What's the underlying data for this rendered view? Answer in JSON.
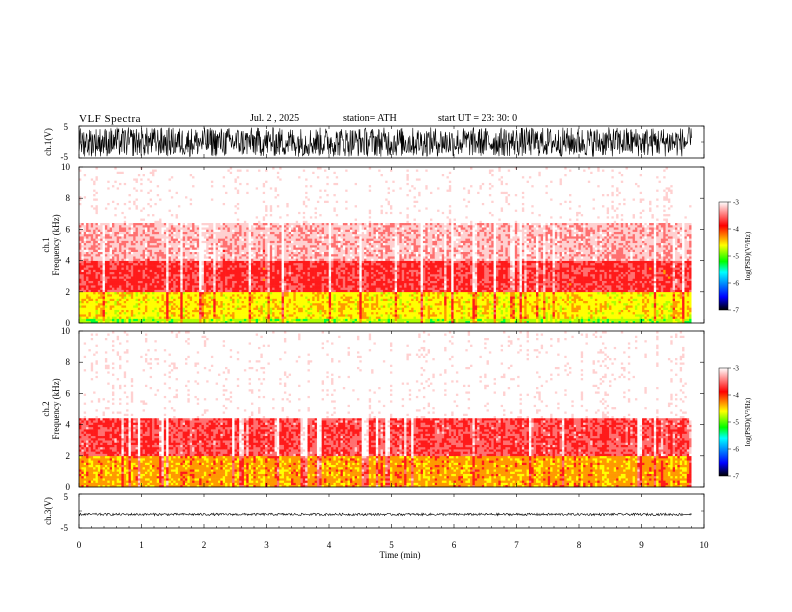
{
  "header": {
    "title": "VLF  Spectra",
    "date": "Jul.  2  , 2025",
    "station": "station= ATH",
    "start": "start  UT  =    23: 30: 0"
  },
  "chart_data": [
    {
      "type": "line",
      "panel": "ch1-waveform",
      "ylabel": "ch.1(V)",
      "ylim": [
        -5,
        5
      ],
      "yticks": [
        "5",
        "-5"
      ],
      "description_of_signal": "dense noise spanning roughly -4.5 to 4.5 V"
    },
    {
      "type": "heatmap",
      "panel": "ch1-spectrogram",
      "ylabel_lines": [
        "ch.1",
        "Frequency  (kHz)"
      ],
      "ylim": [
        0,
        10
      ],
      "yticks": [
        "0",
        "2",
        "4",
        "6",
        "8",
        "10"
      ],
      "x_range_min": [
        0,
        9.8
      ],
      "colorbar": {
        "label": "log(PSD)(V²/Hz)",
        "range": [
          -7,
          -3
        ],
        "ticks": [
          "-3",
          "-4",
          "-5",
          "-6",
          "-7"
        ],
        "colors": [
          "#000000",
          "#0000ff",
          "#00ffff",
          "#00ff00",
          "#ffff00",
          "#ff0000",
          "#ffffff"
        ]
      },
      "bands": [
        {
          "f_lo": 0.0,
          "f_hi": 0.3,
          "level": -4.8
        },
        {
          "f_lo": 0.3,
          "f_hi": 2.0,
          "level": -4.5
        },
        {
          "f_lo": 2.0,
          "f_hi": 4.0,
          "level": -3.9
        },
        {
          "f_lo": 4.0,
          "f_hi": 6.5,
          "level": -3.6
        },
        {
          "f_lo": 6.5,
          "f_hi": 10.0,
          "level": -3.3
        }
      ]
    },
    {
      "type": "heatmap",
      "panel": "ch2-spectrogram",
      "ylabel_lines": [
        "ch.2",
        "Frequency  (kHz)"
      ],
      "ylim": [
        0,
        10
      ],
      "yticks": [
        "0",
        "2",
        "4",
        "6",
        "8",
        "10"
      ],
      "x_range_min": [
        0,
        9.8
      ],
      "colorbar": {
        "label": "log(PSD)(V²/Hz)",
        "range": [
          -7,
          -3
        ],
        "ticks": [
          "-3",
          "-4",
          "-5",
          "-6",
          "-7"
        ],
        "colors": [
          "#000000",
          "#0000ff",
          "#00ffff",
          "#00ff00",
          "#ffff00",
          "#ff0000",
          "#ffffff"
        ]
      },
      "bands": [
        {
          "f_lo": 0.0,
          "f_hi": 2.0,
          "level": -4.3
        },
        {
          "f_lo": 2.0,
          "f_hi": 4.5,
          "level": -3.85
        },
        {
          "f_lo": 4.5,
          "f_hi": 10.0,
          "level": -3.3
        }
      ]
    },
    {
      "type": "line",
      "panel": "ch3-waveform",
      "ylabel": "ch.3(V)",
      "ylim": [
        -5,
        5
      ],
      "yticks": [
        "5",
        "-5"
      ],
      "description_of_signal": "nearly flat trace near -1 V"
    }
  ],
  "xaxis": {
    "label": "Time  (min)",
    "range": [
      0,
      10
    ],
    "ticks": [
      "0",
      "1",
      "2",
      "3",
      "4",
      "5",
      "6",
      "7",
      "8",
      "9",
      "10"
    ]
  }
}
